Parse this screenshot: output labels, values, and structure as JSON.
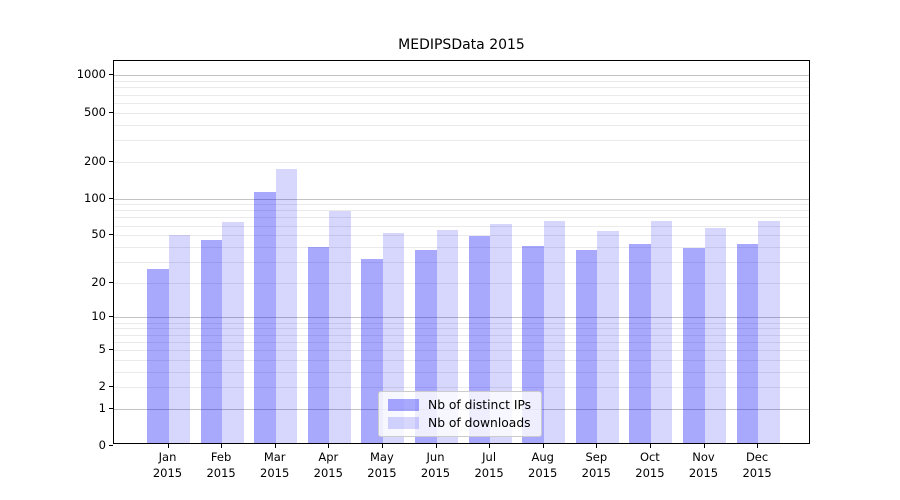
{
  "title": "MEDIPSData 2015",
  "colors": {
    "bar_base_blue": "#0000fa",
    "ips_bar_alpha": 0.34,
    "downloads_bar_alpha": 0.155,
    "grid_major": "#c3c3c3",
    "grid_minor": "#eaeaea",
    "axis": "#000000",
    "legend_border": "#cccccc",
    "text": "#000000"
  },
  "chart_data": {
    "type": "bar",
    "title": "MEDIPSData 2015",
    "categories": [
      "Jan",
      "Feb",
      "Mar",
      "Apr",
      "May",
      "Jun",
      "Jul",
      "Aug",
      "Sep",
      "Oct",
      "Nov",
      "Dec"
    ],
    "year": "2015",
    "series": [
      {
        "name": "Nb of distinct IPs",
        "values": [
          26,
          46,
          113,
          40,
          32,
          38,
          49,
          41,
          38,
          42,
          39,
          42
        ]
      },
      {
        "name": "Nb of downloads",
        "values": [
          50,
          64,
          174,
          79,
          52,
          55,
          62,
          65,
          54,
          66,
          57,
          65
        ]
      }
    ],
    "y_scale": "log10(value+1)",
    "y_ticks": [
      0,
      1,
      2,
      5,
      10,
      20,
      50,
      100,
      200,
      500,
      1000
    ],
    "ylim": [
      0,
      1250
    ],
    "grid": "horizontal, major and minor, behind semi-transparent bars",
    "legend_position": "inside lower-center-left"
  }
}
